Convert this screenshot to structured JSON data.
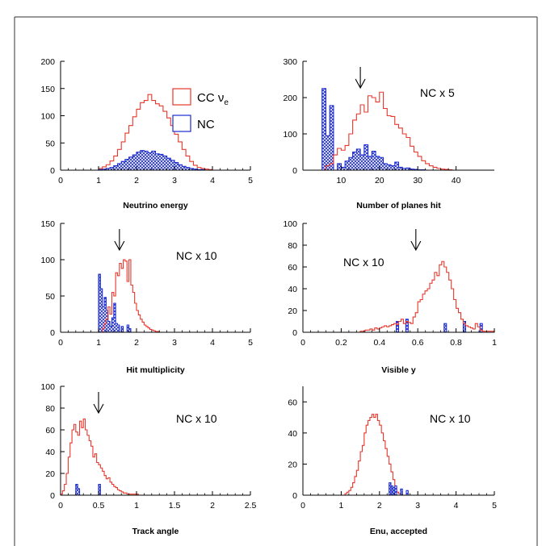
{
  "colors": {
    "cc": "#e8372c",
    "nc": "#1c2cd0"
  },
  "legend": {
    "cc_label": "CC ν",
    "cc_sub": "e",
    "nc_label": "NC"
  },
  "chart_data": [
    {
      "type": "histogram",
      "xlabel": "Neutrino energy",
      "xlim": [
        0,
        5
      ],
      "ylim": [
        0,
        200
      ],
      "xticks": [
        0,
        1,
        2,
        3,
        4,
        5
      ],
      "yticks": [
        0,
        50,
        100,
        150,
        200
      ],
      "bin_width": 0.1,
      "bin_start": 1.0,
      "legend_on": true,
      "series": [
        {
          "key": "cc",
          "values": [
            3,
            6,
            10,
            17,
            26,
            38,
            52,
            68,
            82,
            98,
            112,
            124,
            128,
            139,
            128,
            122,
            118,
            108,
            96,
            82,
            66,
            52,
            38,
            26,
            16,
            9,
            5,
            3,
            2,
            1
          ]
        },
        {
          "key": "nc",
          "values": [
            1,
            2,
            3,
            5,
            8,
            12,
            16,
            20,
            24,
            28,
            33,
            36,
            35,
            32,
            35,
            30,
            29,
            26,
            22,
            18,
            14,
            10,
            7,
            5,
            3,
            2,
            1,
            1,
            0,
            0
          ]
        }
      ]
    },
    {
      "type": "histogram",
      "xlabel": "Number of planes hit",
      "annotation": "NC x 5",
      "arrow_x": 15,
      "xlim": [
        0,
        50
      ],
      "ylim": [
        0,
        300
      ],
      "xticks": [
        10,
        20,
        30,
        40
      ],
      "yticks": [
        0,
        100,
        200,
        300
      ],
      "bin_width": 1,
      "bin_start": 2,
      "series": [
        {
          "key": "cc",
          "values": [
            0,
            0,
            0,
            0,
            12,
            18,
            42,
            60,
            55,
            68,
            100,
            138,
            155,
            180,
            160,
            205,
            200,
            188,
            215,
            170,
            150,
            148,
            126,
            116,
            100,
            90,
            66,
            50,
            38,
            26,
            18,
            12,
            8,
            5,
            3,
            2,
            1
          ]
        },
        {
          "key": "nc",
          "values": [
            0,
            0,
            0,
            225,
            95,
            178,
            0,
            18,
            8,
            25,
            35,
            50,
            58,
            42,
            70,
            38,
            52,
            38,
            35,
            18,
            15,
            12,
            22,
            8,
            5,
            6,
            3,
            2,
            1,
            1,
            0,
            0,
            0,
            0,
            0,
            0,
            0
          ]
        }
      ]
    },
    {
      "type": "histogram",
      "xlabel": "Hit multiplicity",
      "annotation": "NC x 10",
      "arrow_x": 1.55,
      "xlim": [
        0,
        5
      ],
      "ylim": [
        0,
        150
      ],
      "xticks": [
        0,
        1,
        2,
        3,
        4,
        5
      ],
      "yticks": [
        0,
        50,
        100,
        150
      ],
      "bin_width": 0.05,
      "bin_start": 1.0,
      "series": [
        {
          "key": "cc",
          "values": [
            0,
            0,
            5,
            12,
            18,
            35,
            25,
            55,
            50,
            82,
            78,
            95,
            88,
            100,
            98,
            70,
            100,
            65,
            55,
            40,
            30,
            24,
            18,
            14,
            10,
            8,
            6,
            4,
            3,
            2,
            1,
            1
          ]
        },
        {
          "key": "nc",
          "values": [
            80,
            60,
            35,
            48,
            30,
            15,
            8,
            20,
            40,
            12,
            10,
            0,
            8,
            0,
            0,
            10,
            5,
            0,
            0,
            0,
            0,
            0,
            0,
            0,
            0,
            0,
            0,
            0,
            0,
            0,
            0,
            0
          ]
        }
      ]
    },
    {
      "type": "histogram",
      "xlabel": "Visible y",
      "annotation": "NC x 10",
      "arrow_x": 0.59,
      "xlim": [
        0,
        1
      ],
      "ylim": [
        0,
        100
      ],
      "xticks": [
        0,
        0.2,
        0.4,
        0.6,
        0.8,
        1
      ],
      "yticks": [
        0,
        20,
        40,
        60,
        80,
        100
      ],
      "bin_width": 0.0125,
      "bin_start": 0.3,
      "series": [
        {
          "key": "cc",
          "values": [
            1,
            1,
            2,
            2,
            3,
            2,
            4,
            3,
            4,
            5,
            6,
            5,
            6,
            7,
            8,
            7,
            10,
            12,
            8,
            10,
            9,
            8,
            14,
            18,
            28,
            30,
            35,
            38,
            40,
            45,
            48,
            55,
            52,
            62,
            65,
            60,
            55,
            48,
            40,
            30,
            22,
            18,
            12,
            8,
            6,
            5,
            4,
            3,
            8,
            5,
            2,
            1,
            1,
            1,
            1,
            1
          ]
        },
        {
          "key": "nc",
          "values": [
            0,
            0,
            0,
            0,
            0,
            0,
            0,
            0,
            0,
            0,
            0,
            0,
            0,
            0,
            0,
            10,
            0,
            0,
            0,
            12,
            0,
            0,
            0,
            0,
            0,
            0,
            0,
            0,
            0,
            0,
            0,
            0,
            0,
            0,
            0,
            8,
            0,
            0,
            0,
            0,
            0,
            0,
            0,
            10,
            0,
            0,
            0,
            0,
            0,
            0,
            8,
            0,
            0,
            0,
            0,
            0
          ]
        }
      ]
    },
    {
      "type": "histogram",
      "xlabel": "Track angle",
      "annotation": "NC x 10",
      "arrow_x": 0.5,
      "xlim": [
        0,
        2.5
      ],
      "ylim": [
        0,
        100
      ],
      "xticks": [
        0,
        0.5,
        1,
        1.5,
        2,
        2.5
      ],
      "yticks": [
        0,
        20,
        40,
        60,
        80,
        100
      ],
      "bin_width": 0.025,
      "bin_start": 0.0,
      "series": [
        {
          "key": "cc",
          "values": [
            1,
            4,
            10,
            20,
            35,
            48,
            60,
            65,
            58,
            55,
            68,
            62,
            70,
            60,
            55,
            50,
            45,
            35,
            38,
            30,
            28,
            25,
            22,
            18,
            15,
            16,
            12,
            10,
            8,
            7,
            5,
            4,
            3,
            2,
            2,
            1,
            1,
            1,
            1,
            1,
            1
          ]
        },
        {
          "key": "nc",
          "values": [
            0,
            0,
            0,
            0,
            0,
            0,
            0,
            0,
            10,
            6,
            0,
            0,
            0,
            0,
            0,
            0,
            0,
            0,
            0,
            0,
            10,
            0,
            0,
            0,
            0,
            0,
            0,
            0,
            0,
            0,
            0,
            0,
            0,
            0,
            0,
            0,
            0,
            0,
            0,
            0,
            0
          ]
        }
      ]
    },
    {
      "type": "histogram",
      "xlabel": "Enu, accepted",
      "annotation": "NC x 10",
      "xlim": [
        0,
        5
      ],
      "ylim": [
        0,
        70
      ],
      "xticks": [
        0,
        1,
        2,
        3,
        4,
        5
      ],
      "yticks": [
        0,
        20,
        40,
        60
      ],
      "bin_width": 0.05,
      "bin_start": 1.0,
      "series": [
        {
          "key": "cc",
          "values": [
            0,
            0,
            1,
            2,
            3,
            5,
            8,
            12,
            16,
            22,
            28,
            32,
            40,
            45,
            48,
            50,
            52,
            50,
            52,
            48,
            45,
            40,
            35,
            30,
            25,
            20,
            15,
            10,
            5,
            2,
            1,
            0
          ]
        },
        {
          "key": "nc",
          "values": [
            0,
            0,
            0,
            0,
            0,
            0,
            0,
            0,
            0,
            0,
            0,
            0,
            0,
            0,
            0,
            0,
            0,
            0,
            0,
            0,
            0,
            0,
            0,
            0,
            0,
            0,
            0,
            0,
            0,
            0,
            0,
            0
          ]
        }
      ],
      "nc_bars": [
        [
          2.25,
          8
        ],
        [
          2.3,
          6
        ],
        [
          2.35,
          5
        ],
        [
          2.4,
          6
        ],
        [
          2.55,
          4
        ],
        [
          2.7,
          3
        ]
      ]
    }
  ]
}
